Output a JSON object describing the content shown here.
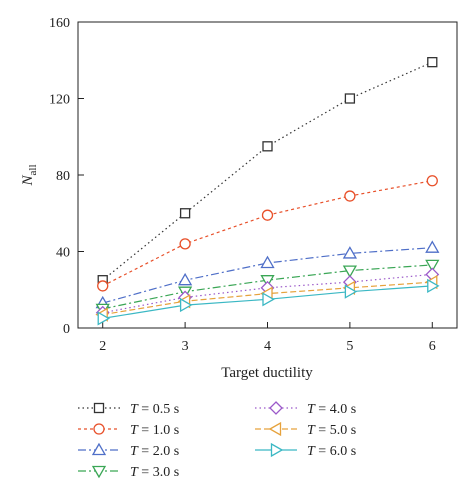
{
  "chart_data": {
    "type": "line",
    "xlabel": "Target ductility",
    "ylabel": {
      "main": "N",
      "sub": "all"
    },
    "xlim": [
      1.7,
      6.3
    ],
    "ylim": [
      0,
      160
    ],
    "xticks": [
      2,
      3,
      4,
      5,
      6
    ],
    "yticks": [
      0,
      40,
      80,
      120,
      160
    ],
    "grid": false,
    "legend_placement": "bottom",
    "series": [
      {
        "name": "T = 0.5 s",
        "legend": {
          "lhs": "T",
          "rhs": " = 0.5 s"
        },
        "color": "#333333",
        "marker": "square",
        "dash": "1.5,3",
        "values": [
          25,
          60,
          95,
          120,
          139
        ]
      },
      {
        "name": "T = 1.0 s",
        "legend": {
          "lhs": "T",
          "rhs": " = 1.0 s"
        },
        "color": "#e8502a",
        "marker": "circle",
        "dash": "3,3",
        "values": [
          22,
          44,
          59,
          69,
          77
        ]
      },
      {
        "name": "T = 2.0 s",
        "legend": {
          "lhs": "T",
          "rhs": " = 2.0 s"
        },
        "color": "#4f6fc8",
        "marker": "triangle-up",
        "dash": "8,3,2,3",
        "values": [
          13,
          25,
          34,
          39,
          42
        ]
      },
      {
        "name": "T = 3.0 s",
        "legend": {
          "lhs": "T",
          "rhs": " = 3.0 s"
        },
        "color": "#3aa655",
        "marker": "triangle-down",
        "dash": "8,3,2,3",
        "values": [
          10,
          19,
          25,
          30,
          33
        ]
      },
      {
        "name": "T = 4.0 s",
        "legend": {
          "lhs": "T",
          "rhs": " = 4.0 s"
        },
        "color": "#9b59c9",
        "marker": "diamond",
        "dash": "1.5,3",
        "values": [
          8,
          16,
          21,
          24,
          28
        ]
      },
      {
        "name": "T = 5.0 s",
        "legend": {
          "lhs": "T",
          "rhs": " = 5.0 s"
        },
        "color": "#e6a23c",
        "marker": "triangle-left",
        "dash": "6,3",
        "values": [
          7,
          14,
          18,
          21,
          24
        ]
      },
      {
        "name": "T = 6.0 s",
        "legend": {
          "lhs": "T",
          "rhs": " = 6.0 s"
        },
        "color": "#3bb8c4",
        "marker": "triangle-right",
        "dash": "none",
        "values": [
          5,
          12,
          15,
          19,
          22
        ]
      }
    ],
    "x": [
      2,
      3,
      4,
      5,
      6
    ]
  }
}
